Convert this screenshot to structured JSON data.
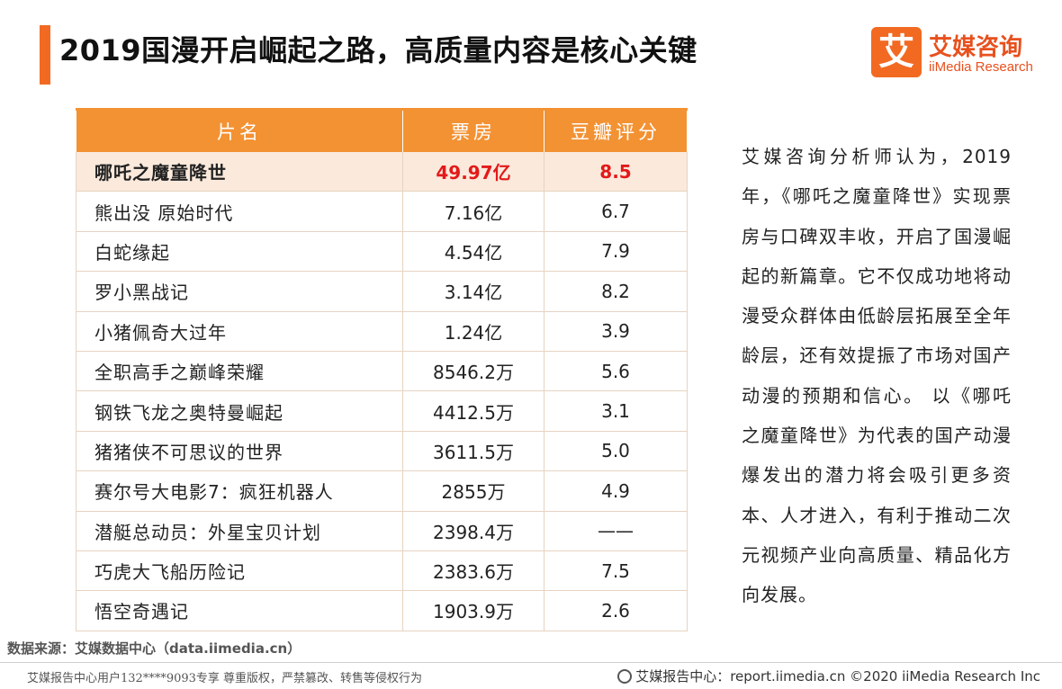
{
  "title": "2019国漫开启崛起之路，高质量内容是核心关键",
  "brand": {
    "logo_char": "艾",
    "name_cn": "艾媒咨询",
    "name_en": "iiMedia Research"
  },
  "table": {
    "headers": [
      "片名",
      "票房",
      "豆瓣评分"
    ],
    "rows": [
      {
        "name": "哪吒之魔童降世",
        "box_office": "49.97亿",
        "score": "8.5"
      },
      {
        "name": "熊出没 原始时代",
        "box_office": "7.16亿",
        "score": "6.7"
      },
      {
        "name": "白蛇缘起",
        "box_office": "4.54亿",
        "score": "7.9"
      },
      {
        "name": "罗小黑战记",
        "box_office": "3.14亿",
        "score": "8.2"
      },
      {
        "name": "小猪佩奇大过年",
        "box_office": "1.24亿",
        "score": "3.9"
      },
      {
        "name": "全职高手之巅峰荣耀",
        "box_office": "8546.2万",
        "score": "5.6"
      },
      {
        "name": "钢铁飞龙之奥特曼崛起",
        "box_office": "4412.5万",
        "score": "3.1"
      },
      {
        "name": "猪猪侠不可思议的世界",
        "box_office": "3611.5万",
        "score": "5.0"
      },
      {
        "name": "赛尔号大电影7：疯狂机器人",
        "box_office": "2855万",
        "score": "4.9"
      },
      {
        "name": "潜艇总动员：外星宝贝计划",
        "box_office": "2398.4万",
        "score": "——"
      },
      {
        "name": "巧虎大飞船历险记",
        "box_office": "2383.6万",
        "score": "7.5"
      },
      {
        "name": "悟空奇遇记",
        "box_office": "1903.9万",
        "score": "2.6"
      }
    ]
  },
  "analysis": "艾媒咨询分析师认为，2019年，《哪吒之魔童降世》实现票房与口碑双丰收，开启了国漫崛起的新篇章。它不仅成功地将动漫受众群体由低龄层拓展至全年龄层，还有效提振了市场对国产动漫的预期和信心。 以《哪吒之魔童降世》为代表的国产动漫爆发出的潜力将会吸引更多资本、人才进入，有利于推动二次元视频产业向高质量、精品化方向发展。",
  "source": "数据来源：艾媒数据中心（data.iimedia.cn）",
  "footer": {
    "left": "艾媒报告中心用户132****9093专享 尊重版权，严禁篡改、转售等侵权行为",
    "right": "艾媒报告中心：report.iimedia.cn ©2020  iiMedia Research  Inc"
  },
  "colors": {
    "accent": "#f26a22",
    "header_bg": "#f39233",
    "highlight_text": "#e21a1a"
  }
}
